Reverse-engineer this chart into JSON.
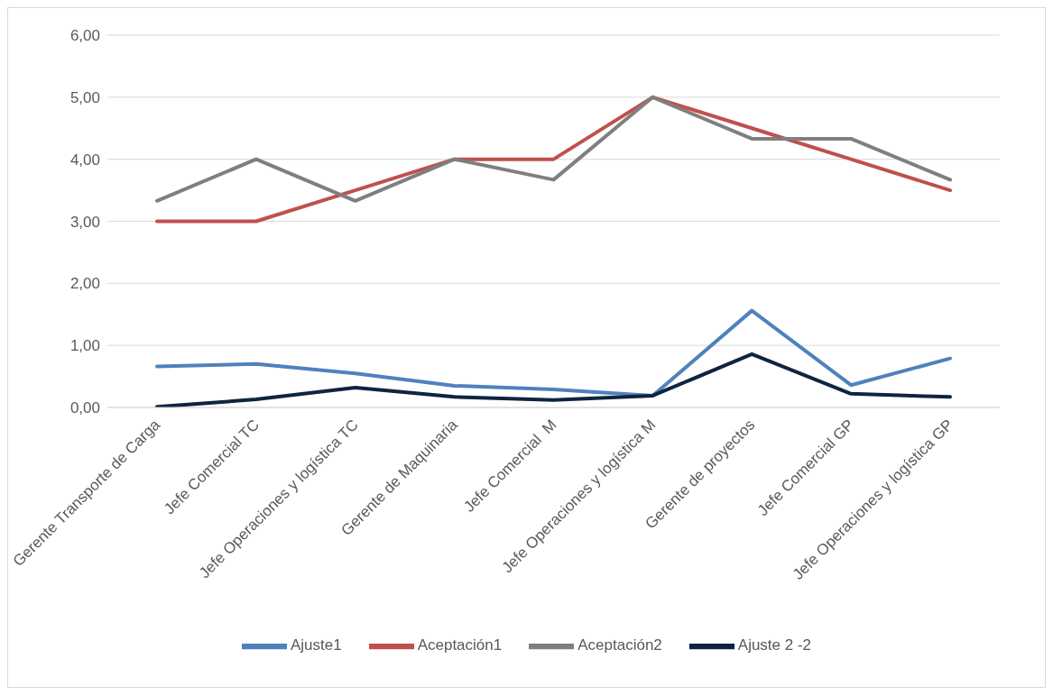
{
  "chart_data": {
    "type": "line",
    "categories": [
      "Gerente Transporte de Carga",
      "Jefe Comercial TC",
      "Jefe Operaciones y logística TC",
      "Gerente de Maquinaria",
      "Jefe Comercial  M",
      "Jefe Operaciones y logística M",
      "Gerente de proyectos",
      "Jefe Comercial GP",
      "Jefe Operaciones y logística GP"
    ],
    "series": [
      {
        "name": "Ajuste1",
        "color": "#4f81bd",
        "values": [
          0.66,
          0.7,
          0.55,
          0.35,
          0.29,
          0.19,
          1.56,
          0.36,
          0.79
        ]
      },
      {
        "name": "Aceptación1",
        "color": "#c0504d",
        "values": [
          3,
          3,
          3.5,
          4,
          4,
          5,
          4.5,
          4,
          3.5
        ]
      },
      {
        "name": "Aceptación2",
        "color": "#7f7f7f",
        "values": [
          3.33,
          4,
          3.33,
          4,
          3.67,
          5,
          4.33,
          4.33,
          3.67
        ]
      },
      {
        "name": "Ajuste 2 -2",
        "color": "#0f243e",
        "values": [
          0.01,
          0.13,
          0.32,
          0.17,
          0.12,
          0.19,
          0.86,
          0.22,
          0.17
        ]
      }
    ],
    "ylim": [
      0,
      6
    ],
    "yticks": [
      {
        "value": 0,
        "label": "0,00"
      },
      {
        "value": 1,
        "label": "1,00"
      },
      {
        "value": 2,
        "label": "2,00"
      },
      {
        "value": 3,
        "label": "3,00"
      },
      {
        "value": 4,
        "label": "4,00"
      },
      {
        "value": 5,
        "label": "5,00"
      },
      {
        "value": 6,
        "label": "6,00"
      }
    ],
    "grid": "y",
    "legend": "bottom",
    "marker": "none",
    "line_style": "solid"
  }
}
